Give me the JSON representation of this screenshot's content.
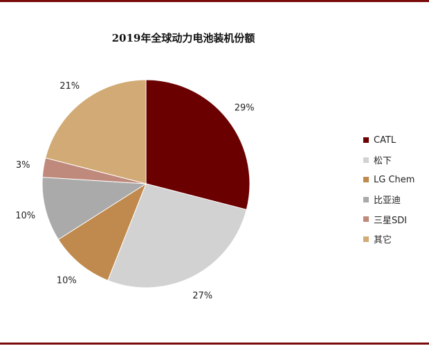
{
  "chart_data": {
    "type": "pie",
    "title": "2019年全球动力电池装机份额",
    "slices": [
      {
        "label": "CATL",
        "value": 29,
        "value_label": "29%",
        "color": "#6b0000"
      },
      {
        "label": "松下",
        "value": 27,
        "value_label": "27%",
        "color": "#d2d2d2"
      },
      {
        "label": "LG Chem",
        "value": 10,
        "value_label": "10%",
        "color": "#c0894d"
      },
      {
        "label": "比亚迪",
        "value": 10,
        "value_label": "10%",
        "color": "#aaaaaa"
      },
      {
        "label": "三星SDI",
        "value": 3,
        "value_label": "3%",
        "color": "#bf8a7c"
      },
      {
        "label": "其它",
        "value": 21,
        "value_label": "21%",
        "color": "#d2aa75"
      }
    ],
    "legend_position": "right"
  }
}
